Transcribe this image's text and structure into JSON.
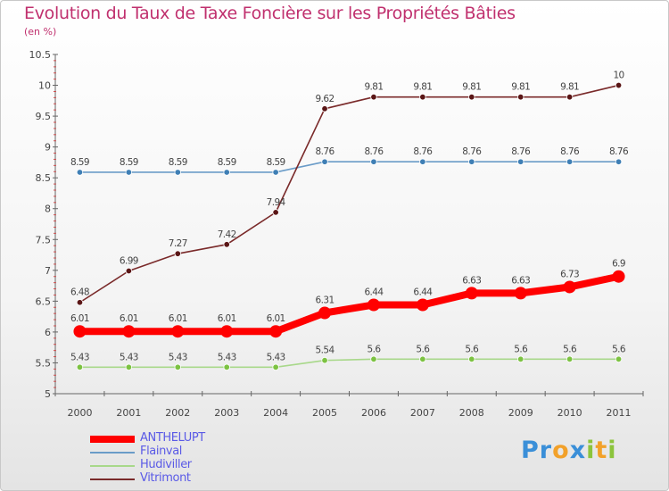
{
  "header": {
    "title": "Evolution du Taux de Taxe Foncière sur les Propriétés Bâties",
    "subtitle": "(en %)"
  },
  "logo": {
    "text": "Proxiti",
    "letters": [
      {
        "ch": "P",
        "color": "#3a8fd8"
      },
      {
        "ch": "r",
        "color": "#3a8fd8"
      },
      {
        "ch": "o",
        "color": "#f2a12a"
      },
      {
        "ch": "x",
        "color": "#3a8fd8"
      },
      {
        "ch": "i",
        "color": "#8cc43c"
      },
      {
        "ch": "t",
        "color": "#f2a12a"
      },
      {
        "ch": "i",
        "color": "#8cc43c"
      }
    ]
  },
  "chart_data": {
    "type": "line",
    "title": "Evolution du Taux de Taxe Foncière sur les Propriétés Bâties",
    "ylabel": "(en %)",
    "xlabel": "",
    "x": [
      "2000",
      "2001",
      "2002",
      "2003",
      "2004",
      "2005",
      "2006",
      "2007",
      "2008",
      "2009",
      "2010",
      "2011"
    ],
    "ylim": [
      5,
      10.5
    ],
    "yticks": [
      5,
      5.5,
      6,
      6.5,
      7,
      7.5,
      8,
      8.5,
      9,
      9.5,
      10,
      10.5
    ],
    "legend_position": "bottom-left",
    "series": [
      {
        "name": "ANTHELUPT",
        "color": "#ff0000",
        "point_color": "#ff0000",
        "emphasis": true,
        "values": [
          6.01,
          6.01,
          6.01,
          6.01,
          6.01,
          6.31,
          6.44,
          6.44,
          6.63,
          6.63,
          6.73,
          6.9
        ],
        "labels": [
          "6.01",
          "6.01",
          "6.01",
          "6.01",
          "6.01",
          "6.31",
          "6.44",
          "6.44",
          "6.63",
          "6.63",
          "6.73",
          "6.9"
        ]
      },
      {
        "name": "Flainval",
        "color": "#6a9cc8",
        "point_color": "#3f7fb5",
        "emphasis": false,
        "values": [
          8.59,
          8.59,
          8.59,
          8.59,
          8.59,
          8.76,
          8.76,
          8.76,
          8.76,
          8.76,
          8.76,
          8.76
        ],
        "labels": [
          "8.59",
          "8.59",
          "8.59",
          "8.59",
          "8.59",
          "8.76",
          "8.76",
          "8.76",
          "8.76",
          "8.76",
          "8.76",
          "8.76"
        ]
      },
      {
        "name": "Hudiviller",
        "color": "#a8d88a",
        "point_color": "#7cc242",
        "emphasis": false,
        "values": [
          5.43,
          5.43,
          5.43,
          5.43,
          5.43,
          5.54,
          5.56,
          5.56,
          5.56,
          5.56,
          5.56,
          5.56
        ],
        "labels": [
          "5.43",
          "5.43",
          "5.43",
          "5.43",
          "5.43",
          "5.54",
          "5.6",
          "5.6",
          "5.6",
          "5.6",
          "5.6",
          "5.6"
        ]
      },
      {
        "name": "Vitrimont",
        "color": "#7a2a2a",
        "point_color": "#5a1616",
        "emphasis": false,
        "values": [
          6.48,
          6.99,
          7.27,
          7.42,
          7.94,
          9.62,
          9.81,
          9.81,
          9.81,
          9.81,
          9.81,
          10
        ],
        "labels": [
          "6.48",
          "6.99",
          "7.27",
          "7.42",
          "7.94",
          "9.62",
          "9.81",
          "9.81",
          "9.81",
          "9.81",
          "9.81",
          "10"
        ]
      }
    ]
  }
}
